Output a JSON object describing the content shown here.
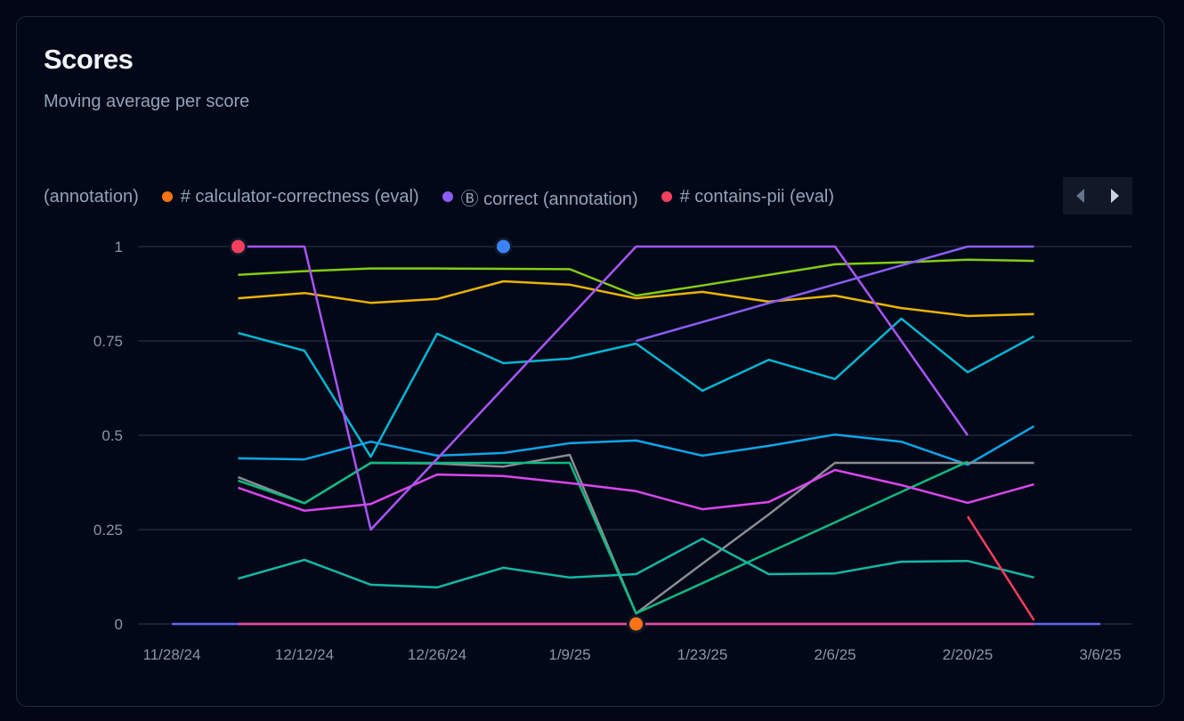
{
  "header": {
    "title": "Scores",
    "subtitle": "Moving average per score"
  },
  "legend": {
    "items": [
      {
        "label": "(annotation)",
        "color": null
      },
      {
        "label": "# calculator-correctness (eval)",
        "color": "#f97316"
      },
      {
        "label": "Ⓑ correct (annotation)",
        "color": "#8b5cf6"
      },
      {
        "label": "# contains-pii (eval)",
        "color": "#f43f5e"
      }
    ],
    "nav": {
      "prev_icon": "chevron-left-icon",
      "next_icon": "chevron-right-icon"
    }
  },
  "chart_data": {
    "type": "line",
    "title": "Scores",
    "subtitle": "Moving average per score",
    "x": [
      "2024-11-28",
      "2024-12-05",
      "2024-12-12",
      "2024-12-19",
      "2024-12-26",
      "2025-01-02",
      "2025-01-09",
      "2025-01-16",
      "2025-01-23",
      "2025-01-30",
      "2025-02-06",
      "2025-02-13",
      "2025-02-20",
      "2025-02-27",
      "2025-03-06"
    ],
    "x_ticks": [
      "11/28/24",
      "12/12/24",
      "12/26/24",
      "1/9/25",
      "1/23/25",
      "2/6/25",
      "2/20/25",
      "3/6/25"
    ],
    "y_ticks": [
      "0",
      "0.25",
      "0.5",
      "0.75",
      "1"
    ],
    "ylim": [
      0,
      1
    ],
    "grid": true,
    "legend_position": "top",
    "series": [
      {
        "color": "#6366f1",
        "values": [
          0,
          0,
          0,
          0,
          0,
          0,
          0,
          0,
          0,
          0,
          0,
          0,
          0,
          0,
          0
        ]
      },
      {
        "color": "#ec4899",
        "values": [
          null,
          0,
          0,
          0,
          0,
          0,
          0,
          0,
          0,
          0,
          0,
          0,
          0,
          0,
          null
        ]
      },
      {
        "color": "#84cc16",
        "values": [
          null,
          0.925,
          0.935,
          0.942,
          0.942,
          0.941,
          0.94,
          0.87,
          0.897,
          0.925,
          0.953,
          0.958,
          0.965,
          0.962,
          null
        ]
      },
      {
        "color": "#eab308",
        "values": [
          null,
          0.863,
          0.877,
          0.851,
          0.861,
          0.908,
          0.899,
          0.863,
          0.88,
          0.854,
          0.87,
          0.837,
          0.816,
          0.821,
          null
        ]
      },
      {
        "color": "#06b6d4",
        "values": [
          null,
          0.771,
          0.724,
          0.443,
          0.769,
          0.691,
          0.703,
          0.743,
          0.618,
          0.7,
          0.649,
          0.809,
          0.667,
          0.762,
          null
        ]
      },
      {
        "color": "#0ea5e9",
        "values": [
          null,
          0.439,
          0.436,
          0.483,
          0.446,
          0.453,
          0.479,
          0.486,
          0.446,
          0.472,
          0.502,
          0.483,
          0.422,
          0.524,
          null
        ]
      },
      {
        "color": "#8b8b93",
        "values": [
          null,
          0.389,
          0.32,
          0.427,
          0.425,
          0.417,
          0.448,
          0.028,
          0.16,
          0.29,
          0.427,
          0.427,
          0.427,
          0.427,
          null
        ]
      },
      {
        "color": "#10b981",
        "values": [
          null,
          0.38,
          0.32,
          0.427,
          0.427,
          0.427,
          0.427,
          0.028,
          0.108,
          0.189,
          0.269,
          0.35,
          0.43,
          null,
          null
        ]
      },
      {
        "color": "#d946ef",
        "values": [
          null,
          0.361,
          0.3,
          0.318,
          0.396,
          0.392,
          0.373,
          0.352,
          0.304,
          0.323,
          0.408,
          0.368,
          0.321,
          0.37,
          null
        ]
      },
      {
        "color": "#14b8a6",
        "values": [
          null,
          0.12,
          0.17,
          0.104,
          0.097,
          0.149,
          0.123,
          0.132,
          0.226,
          0.132,
          0.134,
          0.165,
          0.167,
          0.123,
          null
        ]
      },
      {
        "color": "#a855f7",
        "values": [
          null,
          1,
          1,
          0.25,
          0.4375,
          0.625,
          0.8125,
          1,
          1,
          1,
          1,
          0.75,
          0.5,
          null,
          null
        ]
      },
      {
        "color": "#8b5cf6",
        "values": [
          null,
          null,
          null,
          null,
          null,
          null,
          null,
          0.75,
          0.8,
          0.85,
          0.9,
          0.95,
          1,
          1,
          null
        ]
      },
      {
        "color": "#f43f5e",
        "values": [
          null,
          null,
          null,
          null,
          null,
          null,
          null,
          null,
          null,
          null,
          null,
          null,
          0.285,
          0.01,
          null
        ]
      }
    ],
    "annotations": [
      {
        "x": "2024-12-05",
        "y": 1,
        "color": "#f43f5e"
      },
      {
        "x": "2025-01-02",
        "y": 1,
        "color": "#3b82f6"
      },
      {
        "x": "2025-01-16",
        "y": 0,
        "color": "#f97316"
      }
    ]
  }
}
